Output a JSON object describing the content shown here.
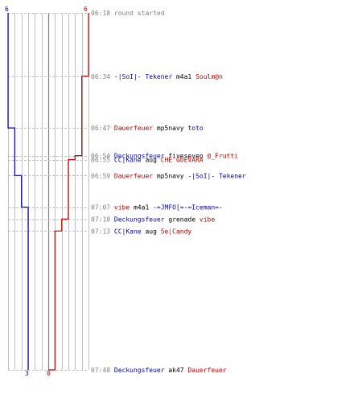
{
  "scale": {
    "top_left": "6",
    "top_right": "6",
    "bottom_left": "3",
    "bottom_right": "0",
    "max": 6
  },
  "colors": {
    "team_blue": "#0000c0",
    "team_red": "#c00000",
    "neutral": "#000000",
    "muted": "#808080",
    "grid": "#c0c0c0",
    "dash": "#c0c0c0",
    "center": "#808080"
  },
  "time_range": {
    "start": "06:18",
    "end": "07:48"
  },
  "events": [
    {
      "time": "06:18",
      "parts": [
        {
          "text": "round started",
          "team": "muted"
        }
      ]
    },
    {
      "time": "06:34",
      "parts": [
        {
          "text": "-|SoI|- Tekener",
          "team": "blue"
        },
        {
          "text": " m4a1 ",
          "team": "neutral"
        },
        {
          "text": "Soulm@n",
          "team": "red"
        }
      ]
    },
    {
      "time": "06:47",
      "parts": [
        {
          "text": "Dauerfeuer",
          "team": "red"
        },
        {
          "text": " mp5navy ",
          "team": "neutral"
        },
        {
          "text": "toto",
          "team": "blue"
        }
      ]
    },
    {
      "time": "06:54",
      "parts": [
        {
          "text": "Deckungsfeuer",
          "team": "blue"
        },
        {
          "text": " fiveseven ",
          "team": "neutral"
        },
        {
          "text": "@_Frutti",
          "team": "red"
        }
      ]
    },
    {
      "time": "06:55",
      "parts": [
        {
          "text": "CC|Kane",
          "team": "blue"
        },
        {
          "text": " aug ",
          "team": "neutral"
        },
        {
          "text": "CHE GUEVARA",
          "team": "red"
        }
      ]
    },
    {
      "time": "06:59",
      "parts": [
        {
          "text": "Dauerfeuer",
          "team": "red"
        },
        {
          "text": " mp5navy ",
          "team": "neutral"
        },
        {
          "text": "-|SoI|- Tekener",
          "team": "blue"
        }
      ]
    },
    {
      "time": "07:07",
      "parts": [
        {
          "text": "vibe",
          "team": "red"
        },
        {
          "text": " m4a1 ",
          "team": "neutral"
        },
        {
          "text": "-=JMFO[=-=Iceman=-",
          "team": "blue"
        }
      ]
    },
    {
      "time": "07:10",
      "parts": [
        {
          "text": "Deckungsfeuer",
          "team": "blue"
        },
        {
          "text": " grenade ",
          "team": "neutral"
        },
        {
          "text": "vibe",
          "team": "red"
        }
      ]
    },
    {
      "time": "07:13",
      "parts": [
        {
          "text": "CC|Kane",
          "team": "blue"
        },
        {
          "text": " aug ",
          "team": "neutral"
        },
        {
          "text": "5e|Candy",
          "team": "red"
        }
      ]
    },
    {
      "time": "07:48",
      "parts": [
        {
          "text": "Deckungsfeuer",
          "team": "blue"
        },
        {
          "text": " ak47 ",
          "team": "neutral"
        },
        {
          "text": "Dauerfeuer",
          "team": "red"
        }
      ]
    }
  ],
  "alive_counts": {
    "blue": [
      {
        "from": "06:18",
        "alive": 6
      },
      {
        "from": "06:47",
        "alive": 5
      },
      {
        "from": "06:59",
        "alive": 4
      },
      {
        "from": "07:07",
        "alive": 3
      }
    ],
    "red": [
      {
        "from": "06:18",
        "alive": 6
      },
      {
        "from": "06:34",
        "alive": 5
      },
      {
        "from": "06:54",
        "alive": 4
      },
      {
        "from": "06:55",
        "alive": 3
      },
      {
        "from": "07:10",
        "alive": 2
      },
      {
        "from": "07:13",
        "alive": 1
      },
      {
        "from": "07:48",
        "alive": 0
      }
    ]
  }
}
